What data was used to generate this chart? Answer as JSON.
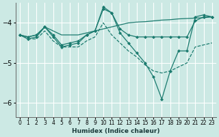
{
  "xlabel": "Humidex (Indice chaleur)",
  "bg_color": "#cce9e4",
  "grid_color": "#ffffff",
  "line_color": "#1a7a6e",
  "ylim": [
    -6.35,
    -3.5
  ],
  "xlim": [
    -0.5,
    23.5
  ],
  "yticks": [
    -6,
    -5,
    -4
  ],
  "xticks": [
    0,
    1,
    2,
    3,
    4,
    5,
    6,
    7,
    8,
    9,
    10,
    11,
    12,
    13,
    14,
    15,
    16,
    17,
    18,
    19,
    20,
    21,
    22,
    23
  ],
  "series": [
    {
      "x": [
        0,
        1,
        2,
        3,
        4,
        5,
        6,
        7,
        8,
        9,
        10,
        11,
        12,
        13,
        14,
        15,
        16,
        17,
        18,
        19,
        20,
        21,
        22,
        23
      ],
      "y": [
        -4.3,
        -4.35,
        -4.3,
        -4.1,
        -4.2,
        -4.3,
        -4.3,
        -4.3,
        -4.25,
        -4.2,
        -4.15,
        -4.1,
        -4.05,
        -4.0,
        -3.98,
        -3.97,
        -3.95,
        -3.93,
        -3.92,
        -3.9,
        -3.89,
        -3.88,
        -3.87,
        -3.85
      ],
      "has_markers": false,
      "linewidth": 0.9,
      "linestyle": "-"
    },
    {
      "x": [
        0,
        1,
        2,
        3,
        4,
        5,
        6,
        7,
        8,
        9,
        10,
        11,
        12,
        13,
        14,
        15,
        16,
        17,
        18,
        19,
        20,
        21,
        22,
        23
      ],
      "y": [
        -4.3,
        -4.35,
        -4.3,
        -4.1,
        -4.3,
        -4.55,
        -4.5,
        -4.45,
        -4.3,
        -4.2,
        -3.65,
        -3.75,
        -4.15,
        -4.3,
        -4.35,
        -4.35,
        -4.35,
        -4.35,
        -4.35,
        -4.35,
        -4.35,
        -3.95,
        -3.85,
        -3.85
      ],
      "has_markers": true,
      "linewidth": 0.9,
      "linestyle": "-"
    },
    {
      "x": [
        0,
        1,
        2,
        3,
        4,
        5,
        6,
        7,
        8,
        9,
        10,
        11,
        12,
        13,
        14,
        15,
        16,
        17,
        18,
        19,
        20,
        21,
        22,
        23
      ],
      "y": [
        -4.3,
        -4.4,
        -4.4,
        -4.2,
        -4.45,
        -4.6,
        -4.6,
        -4.6,
        -4.45,
        -4.35,
        -4.0,
        -4.3,
        -4.5,
        -4.7,
        -4.85,
        -5.05,
        -5.2,
        -5.25,
        -5.2,
        -5.1,
        -5.0,
        -4.6,
        -4.55,
        -4.5
      ],
      "has_markers": false,
      "linewidth": 0.9,
      "linestyle": "--"
    },
    {
      "x": [
        0,
        1,
        2,
        3,
        4,
        5,
        6,
        7,
        8,
        9,
        10,
        11,
        12,
        13,
        14,
        15,
        16,
        17,
        18,
        19,
        20,
        21,
        22,
        23
      ],
      "y": [
        -4.3,
        -4.4,
        -4.35,
        -4.1,
        -4.35,
        -4.6,
        -4.55,
        -4.5,
        -4.3,
        -4.2,
        -3.6,
        -3.75,
        -4.25,
        -4.5,
        -4.75,
        -5.0,
        -5.35,
        -5.9,
        -5.2,
        -4.7,
        -4.7,
        -3.85,
        -3.8,
        -3.85
      ],
      "has_markers": true,
      "linewidth": 0.9,
      "linestyle": "-"
    }
  ]
}
